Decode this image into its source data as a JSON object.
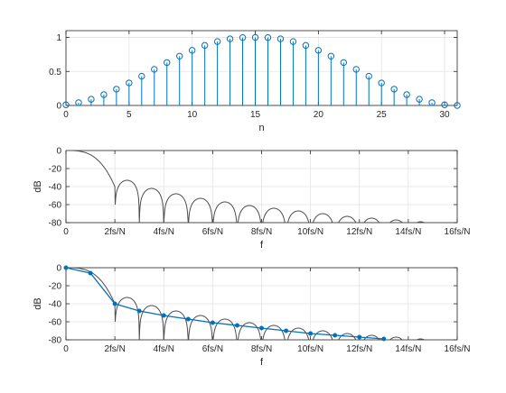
{
  "chart_data": [
    {
      "type": "stem",
      "xlabel": "n",
      "ylabel": "",
      "xlim": [
        0,
        31
      ],
      "ylim": [
        0,
        1.1
      ],
      "xticks": [
        0,
        5,
        10,
        15,
        20,
        25,
        30
      ],
      "xtick_labels": [
        "0",
        "5",
        "10",
        "15",
        "20",
        "25",
        "30"
      ],
      "yticks": [
        0,
        0.5,
        1
      ],
      "ytick_labels": [
        "0",
        "0.5",
        "1"
      ],
      "grid": true,
      "colors": {
        "stem": "#0072BD"
      },
      "series": [
        {
          "x": [
            0,
            1,
            2,
            3,
            4,
            5,
            6,
            7,
            8,
            9,
            10,
            11,
            12,
            13,
            14,
            15,
            16,
            17,
            18,
            19,
            20,
            21,
            22,
            23,
            24,
            25,
            26,
            27,
            28,
            29,
            30,
            31
          ],
          "values": [
            0.01,
            0.041,
            0.091,
            0.159,
            0.24,
            0.331,
            0.43,
            0.531,
            0.631,
            0.725,
            0.81,
            0.883,
            0.94,
            0.979,
            0.998,
            1.0,
            0.998,
            0.979,
            0.94,
            0.883,
            0.81,
            0.725,
            0.631,
            0.531,
            0.43,
            0.331,
            0.24,
            0.159,
            0.091,
            0.041,
            0.01,
            0.0
          ]
        }
      ]
    },
    {
      "type": "line",
      "xlabel": "f",
      "ylabel": "dB",
      "xlim": [
        0,
        16
      ],
      "ylim": [
        -80,
        0
      ],
      "xticks": [
        0,
        2,
        4,
        6,
        8,
        10,
        12,
        14,
        16
      ],
      "xtick_labels": [
        "0",
        "2fs/N",
        "4fs/N",
        "6fs/N",
        "8fs/N",
        "10fs/N",
        "12fs/N",
        "14fs/N",
        "16fs/N"
      ],
      "yticks": [
        0,
        -20,
        -40,
        -60,
        -80
      ],
      "ytick_labels": [
        "0",
        "-20",
        "-40",
        "-60",
        "-80"
      ],
      "grid": true,
      "colors": {
        "response": "#4D4D4D"
      },
      "lobe_peaks_db": [
        -33,
        -42,
        -48,
        -53,
        -57,
        -61,
        -64,
        -67,
        -70,
        -73,
        -75,
        -77,
        -79
      ]
    },
    {
      "type": "line",
      "xlabel": "f",
      "ylabel": "dB",
      "xlim": [
        0,
        16
      ],
      "ylim": [
        -80,
        0
      ],
      "xticks": [
        0,
        2,
        4,
        6,
        8,
        10,
        12,
        14,
        16
      ],
      "xtick_labels": [
        "0",
        "2fs/N",
        "4fs/N",
        "6fs/N",
        "8fs/N",
        "10fs/N",
        "12fs/N",
        "14fs/N",
        "16fs/N"
      ],
      "yticks": [
        0,
        -20,
        -40,
        -60,
        -80
      ],
      "ytick_labels": [
        "0",
        "-20",
        "-40",
        "-60",
        "-80"
      ],
      "grid": true,
      "colors": {
        "response": "#4D4D4D",
        "sampled": "#0072BD"
      },
      "lobe_peaks_db": [
        -33,
        -42,
        -48,
        -53,
        -57,
        -61,
        -64,
        -67,
        -70,
        -73,
        -75,
        -77,
        -79
      ],
      "series": [
        {
          "x": [
            0,
            1,
            2,
            3,
            4,
            5,
            6,
            7,
            8,
            9,
            10,
            11,
            12,
            13
          ],
          "values": [
            0,
            -6,
            -40,
            -48,
            -53,
            -57,
            -61,
            -64,
            -67,
            -70,
            -73,
            -75,
            -77,
            -79
          ]
        }
      ]
    }
  ]
}
